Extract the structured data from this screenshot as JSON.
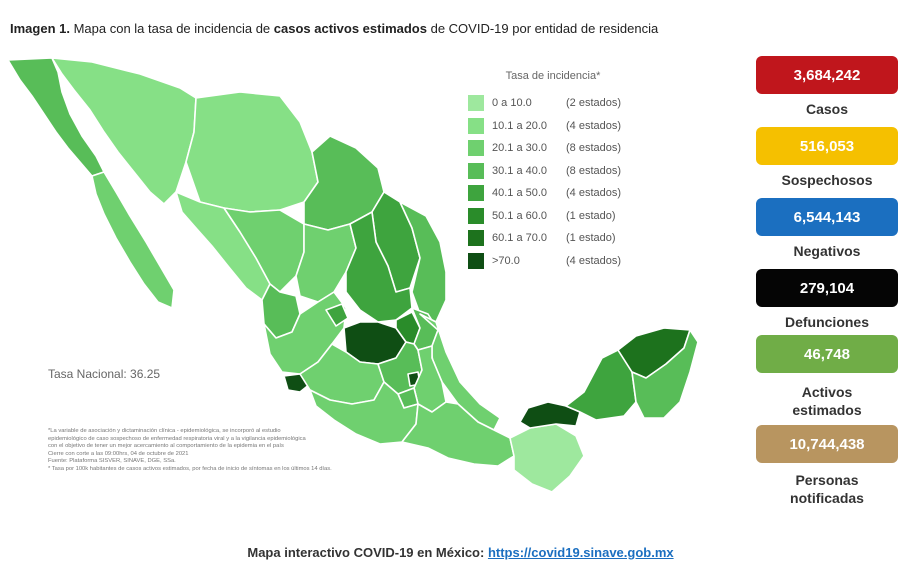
{
  "header": {
    "prefix": "Imagen 1.",
    "text_a": " Mapa con la tasa de incidencia de ",
    "text_bold": "casos activos estimados",
    "text_b": " de COVID-19 por entidad de residencia"
  },
  "legend": {
    "title": "Tasa de incidencia*",
    "items": [
      {
        "range": "0   a  10.0",
        "count": "(2 estados)",
        "color": "#9ee89e"
      },
      {
        "range": "10.1 a  20.0",
        "count": "(4 estados)",
        "color": "#86e086"
      },
      {
        "range": "20.1 a  30.0",
        "count": "(8 estados)",
        "color": "#6fd06f"
      },
      {
        "range": "30.1 a  40.0",
        "count": "(8 estados)",
        "color": "#58bd58"
      },
      {
        "range": "40.1 a  50.0",
        "count": "(4 estados)",
        "color": "#3ea43e"
      },
      {
        "range": "50.1 a  60.0",
        "count": "(1 estado)",
        "color": "#2a8c2a"
      },
      {
        "range": "60.1 a  70.0",
        "count": "(1 estado)",
        "color": "#1d721d"
      },
      {
        "range": ">70.0",
        "count": "(4 estados)",
        "color": "#0f4e14"
      }
    ]
  },
  "national_rate": "Tasa Nacional: 36.25",
  "notes": [
    "*La variable de asociación y dictaminación clínica - epidemiológica, se incorporó al estudio",
    "epidemiológico de caso sospechoso de enfermedad respiratoria viral y a la vigilancia epidemiológica",
    "con el objetivo de tener un mejor acercamiento al comportamiento de la epidemia en el país",
    "Cierre con corte a las 09:00hrs, 04 de octubre de 2021",
    "Fuente: Plataforma SISVER, SINAVE, DGE, SSa.",
    "* Tasa por 100k habitantes de casos activos estimados, por fecha de inicio de síntomas en los últimos 14 días."
  ],
  "stats": [
    {
      "value": "3,684,242",
      "label": "Casos",
      "color": "#c0161c"
    },
    {
      "value": "516,053",
      "label": "Sospechosos",
      "color": "#f5c000"
    },
    {
      "value": "6,544,143",
      "label": "Negativos",
      "color": "#1b6fc0"
    },
    {
      "value": "279,104",
      "label": "Defunciones",
      "color": "#050505"
    },
    {
      "value": "46,748",
      "label": "Activos estimados",
      "color": "#70ad47"
    },
    {
      "value": "10,744,438",
      "label": "Personas notificadas",
      "color": "#b89560"
    }
  ],
  "footer": {
    "text": "Mapa interactivo COVID-19 en México: ",
    "link": "https://covid19.sinave.gob.mx"
  },
  "map": {
    "water_color": "#ffffff",
    "border_color": "#ffffff"
  }
}
